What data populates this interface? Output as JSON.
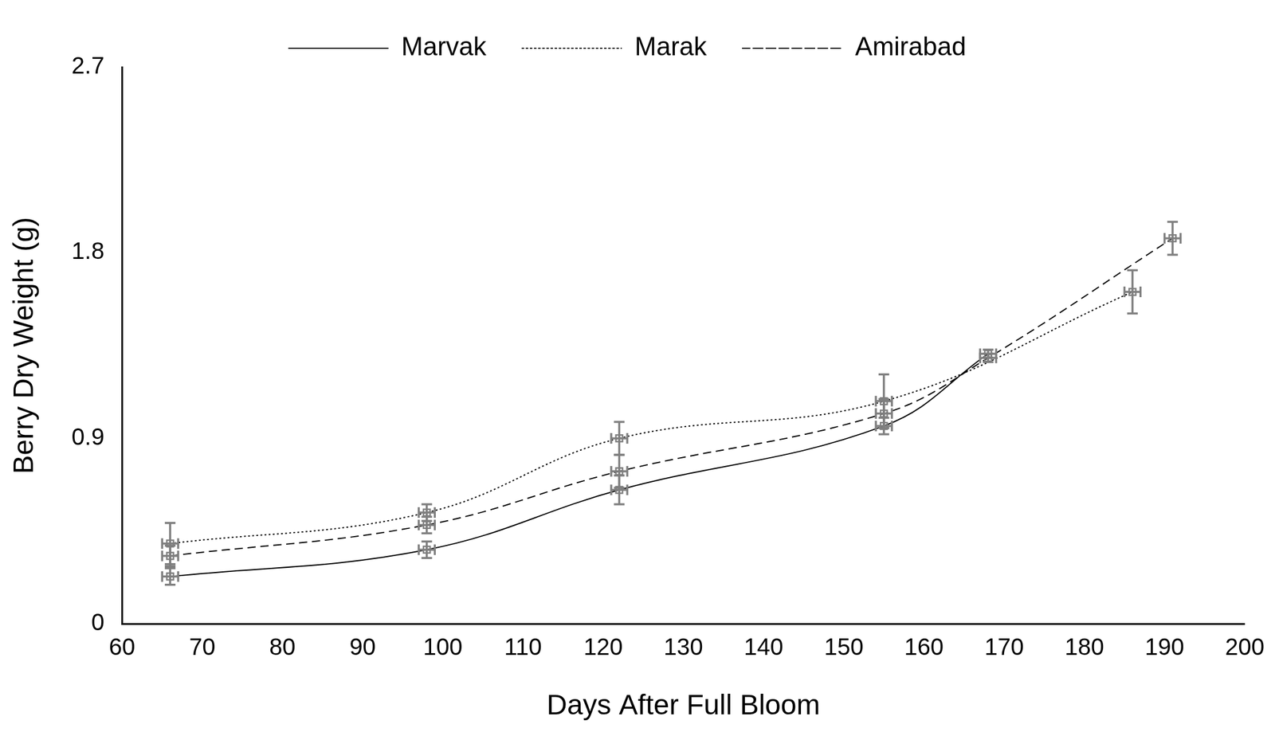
{
  "chart_data": {
    "type": "line",
    "x_label": "Days After Full Bloom",
    "y_label": "Berry Dry Weight (g)",
    "xlim": [
      60,
      200
    ],
    "xticks": [
      60,
      70,
      80,
      90,
      100,
      110,
      120,
      130,
      140,
      150,
      160,
      170,
      180,
      190,
      200
    ],
    "ylim": [
      0,
      2.7
    ],
    "yticks": [
      0,
      0.9,
      1.8,
      2.7
    ],
    "grid": false,
    "legend": "top",
    "marker": "square",
    "series": [
      {
        "name": "Marvak",
        "color": "#000000",
        "line_style": "solid",
        "x": [
          66,
          98,
          122,
          155,
          168
        ],
        "values": [
          0.23,
          0.36,
          0.65,
          0.96,
          1.31
        ],
        "x_err": [
          1,
          1,
          1,
          1,
          1
        ],
        "y_err": [
          0.04,
          0.04,
          0.07,
          0.04,
          0.02
        ]
      },
      {
        "name": "Marak",
        "color": "#000000",
        "line_style": "dotted",
        "x": [
          66,
          98,
          122,
          155,
          186
        ],
        "values": [
          0.39,
          0.54,
          0.9,
          1.08,
          1.61
        ],
        "x_err": [
          1,
          1,
          1,
          1,
          1
        ],
        "y_err": [
          0.1,
          0.04,
          0.08,
          0.13,
          0.105
        ]
      },
      {
        "name": "Amirabad",
        "color": "#000000",
        "line_style": "dashed",
        "x": [
          66,
          98,
          122,
          155,
          168,
          191
        ],
        "values": [
          0.33,
          0.48,
          0.74,
          1.02,
          1.29,
          1.87
        ],
        "x_err": [
          1,
          1,
          1,
          1,
          1,
          1
        ],
        "y_err": [
          0.05,
          0.04,
          0.08,
          0.07,
          0.02,
          0.08
        ]
      }
    ]
  }
}
